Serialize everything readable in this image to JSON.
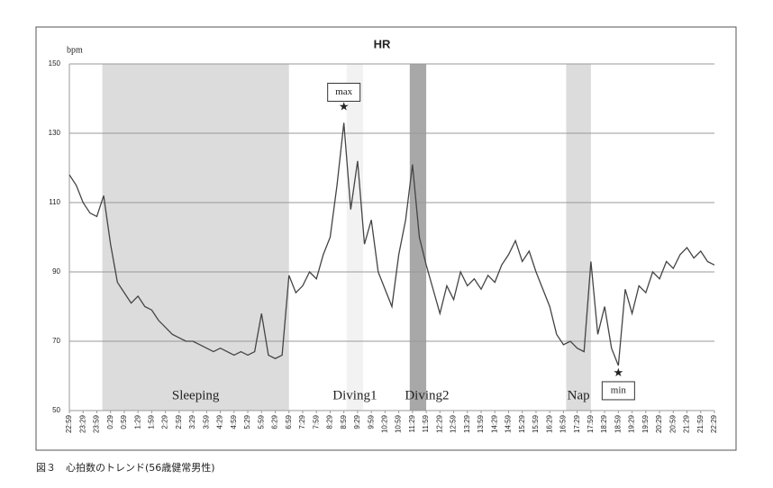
{
  "chart_data": {
    "type": "line",
    "title": "HR",
    "y_unit": "bpm",
    "caption": "図３　心拍数のトレンド(56歳健常男性)",
    "series": [
      {
        "name": "HR",
        "color": "#444444",
        "x": [
          0,
          0.25,
          0.5,
          0.75,
          1,
          1.25,
          1.5,
          1.75,
          2,
          2.25,
          2.5,
          2.75,
          3,
          3.25,
          3.5,
          3.75,
          4,
          4.25,
          4.5,
          4.75,
          5,
          5.25,
          5.5,
          5.75,
          6,
          6.25,
          6.5,
          6.75,
          7,
          7.25,
          7.5,
          7.75,
          8,
          8.25,
          8.5,
          8.75,
          9,
          9.25,
          9.5,
          9.75,
          10,
          10.25,
          10.5,
          10.75,
          11,
          11.25,
          11.5,
          11.75,
          12,
          12.25,
          12.5,
          12.75,
          13,
          13.25,
          13.5,
          13.75,
          14,
          14.25,
          14.5,
          14.75,
          15,
          15.25,
          15.5,
          15.75,
          16,
          16.25,
          16.5,
          16.75,
          17,
          17.25,
          17.5,
          17.75,
          18,
          18.25,
          18.5,
          18.75,
          19,
          19.25,
          19.5,
          19.75,
          20,
          20.25,
          20.5,
          20.75,
          21,
          21.25,
          21.5,
          21.75,
          22,
          22.25,
          22.5,
          22.75,
          23,
          23.25,
          23.5
        ],
        "values": [
          118,
          115,
          110,
          107,
          106,
          112,
          98,
          87,
          84,
          81,
          83,
          80,
          79,
          76,
          74,
          72,
          71,
          70,
          70,
          69,
          68,
          67,
          68,
          67,
          66,
          67,
          66,
          67,
          78,
          66,
          65,
          66,
          89,
          84,
          86,
          90,
          88,
          95,
          100,
          115,
          133,
          108,
          122,
          98,
          105,
          90,
          85,
          80,
          95,
          105,
          121,
          100,
          92,
          85,
          78,
          86,
          82,
          90,
          86,
          88,
          85,
          89,
          87,
          92,
          95,
          99,
          93,
          96,
          90,
          85,
          80,
          72,
          69,
          70,
          68,
          67,
          93,
          72,
          80,
          68,
          63,
          85,
          78,
          86,
          84,
          90,
          88,
          93,
          91,
          95,
          97,
          94,
          96,
          93,
          92
        ]
      }
    ],
    "bands": [
      {
        "label": "Sleeping",
        "start": 1.2,
        "end": 8.0,
        "color": "#dcdcdc"
      },
      {
        "label": "Diving1",
        "start": 10.1,
        "end": 10.7,
        "color": "#f2f2f2"
      },
      {
        "label": "Diving2",
        "start": 12.4,
        "end": 13.0,
        "color": "#a8a8a8"
      },
      {
        "label": "Nap",
        "start": 18.1,
        "end": 19.0,
        "color": "#dcdcdc"
      }
    ],
    "annotations": [
      {
        "text": "max",
        "x": 10,
        "y": 133,
        "position": "above"
      },
      {
        "text": "min",
        "x": 20,
        "y": 63,
        "position": "below"
      }
    ],
    "ylim": [
      50,
      150
    ],
    "yticks": [
      50,
      70,
      90,
      110,
      130,
      150
    ],
    "grid": true,
    "xlim": [
      0,
      23.5
    ],
    "xticks": [
      {
        "value": 0,
        "label": "22:59"
      },
      {
        "value": 0.5,
        "label": "23:29"
      },
      {
        "value": 1,
        "label": "23:59"
      },
      {
        "value": 1.5,
        "label": "0:29"
      },
      {
        "value": 2,
        "label": "0:59"
      },
      {
        "value": 2.5,
        "label": "1:29"
      },
      {
        "value": 3,
        "label": "1:59"
      },
      {
        "value": 3.5,
        "label": "2:29"
      },
      {
        "value": 4,
        "label": "2:59"
      },
      {
        "value": 4.5,
        "label": "3:29"
      },
      {
        "value": 5,
        "label": "3:59"
      },
      {
        "value": 5.5,
        "label": "4:29"
      },
      {
        "value": 6,
        "label": "4:59"
      },
      {
        "value": 6.5,
        "label": "5:29"
      },
      {
        "value": 7,
        "label": "5:59"
      },
      {
        "value": 7.5,
        "label": "6:29"
      },
      {
        "value": 8,
        "label": "6:59"
      },
      {
        "value": 8.5,
        "label": "7:29"
      },
      {
        "value": 9,
        "label": "7:59"
      },
      {
        "value": 9.5,
        "label": "8:29"
      },
      {
        "value": 10,
        "label": "8:59"
      },
      {
        "value": 10.5,
        "label": "9:29"
      },
      {
        "value": 11,
        "label": "9:59"
      },
      {
        "value": 11.5,
        "label": "10:29"
      },
      {
        "value": 12,
        "label": "10:59"
      },
      {
        "value": 12.5,
        "label": "11:29"
      },
      {
        "value": 13,
        "label": "11:59"
      },
      {
        "value": 13.5,
        "label": "12:29"
      },
      {
        "value": 14,
        "label": "12:59"
      },
      {
        "value": 14.5,
        "label": "13:29"
      },
      {
        "value": 15,
        "label": "13:59"
      },
      {
        "value": 15.5,
        "label": "14:29"
      },
      {
        "value": 16,
        "label": "14:59"
      },
      {
        "value": 16.5,
        "label": "15:29"
      },
      {
        "value": 17,
        "label": "15:59"
      },
      {
        "value": 17.5,
        "label": "16:29"
      },
      {
        "value": 18,
        "label": "16:59"
      },
      {
        "value": 18.5,
        "label": "17:29"
      },
      {
        "value": 19,
        "label": "17:59"
      },
      {
        "value": 19.5,
        "label": "18:29"
      },
      {
        "value": 20,
        "label": "18:59"
      },
      {
        "value": 20.5,
        "label": "19:29"
      },
      {
        "value": 21,
        "label": "19:59"
      },
      {
        "value": 21.5,
        "label": "20:29"
      },
      {
        "value": 22,
        "label": "20:59"
      },
      {
        "value": 22.5,
        "label": "21:29"
      },
      {
        "value": 23,
        "label": "21:59"
      },
      {
        "value": 23.5,
        "label": "22:29"
      }
    ]
  }
}
